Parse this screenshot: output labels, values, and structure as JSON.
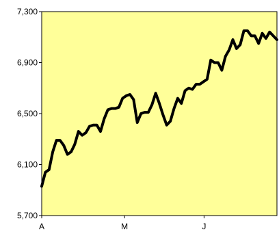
{
  "colors": {
    "plot_background": "#ffff99",
    "line": "#000000",
    "axis": "#000000"
  },
  "chart_data": {
    "type": "line",
    "title": "",
    "xlabel": "",
    "ylabel": "",
    "ylim": [
      5700,
      7300
    ],
    "yticks": [
      5700,
      6100,
      6500,
      6900,
      7300
    ],
    "ytick_labels": [
      "5,700",
      "6,100",
      "6,500",
      "6,900",
      "7,300"
    ],
    "grid": false,
    "legend": "none",
    "xlim": [
      0,
      71
    ],
    "xticks": [
      {
        "x": 0,
        "label": "A"
      },
      {
        "x": 25,
        "label": "M"
      },
      {
        "x": 49,
        "label": "J"
      }
    ],
    "series": [
      {
        "values": [
          5930,
          6040,
          6060,
          6200,
          6290,
          6290,
          6250,
          6180,
          6200,
          6260,
          6360,
          6330,
          6350,
          6400,
          6410,
          6410,
          6360,
          6460,
          6530,
          6540,
          6540,
          6550,
          6620,
          6640,
          6650,
          6610,
          6430,
          6500,
          6510,
          6510,
          6570,
          6660,
          6580,
          6490,
          6410,
          6440,
          6540,
          6620,
          6580,
          6680,
          6700,
          6690,
          6730,
          6730,
          6750,
          6770,
          6920,
          6900,
          6900,
          6840,
          6950,
          7000,
          7080,
          7010,
          7040,
          7150,
          7150,
          7110,
          7110,
          7050,
          7130,
          7090,
          7140,
          7110,
          7080
        ]
      }
    ]
  }
}
